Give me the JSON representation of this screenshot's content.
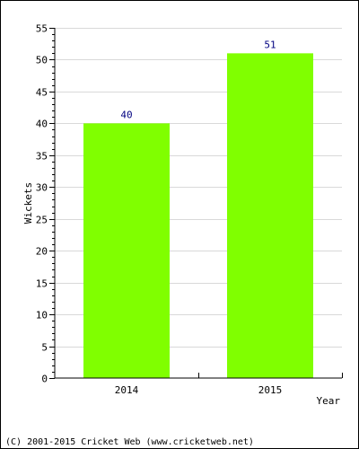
{
  "chart_data": {
    "type": "bar",
    "categories": [
      "2014",
      "2015"
    ],
    "values": [
      40,
      51
    ],
    "value_labels": [
      "40",
      "51"
    ],
    "title": "",
    "xlabel": "Year",
    "ylabel": "Wickets",
    "ylim": [
      0,
      55
    ],
    "yticks": [
      "0",
      "5",
      "10",
      "15",
      "20",
      "25",
      "30",
      "35",
      "40",
      "45",
      "50",
      "55"
    ],
    "grid": true,
    "bar_color": "#80ff00",
    "value_label_color": "#000080",
    "grid_color": "#d9d9d9"
  },
  "footer": {
    "copyright": "(C) 2001-2015 Cricket Web (www.cricketweb.net)"
  }
}
